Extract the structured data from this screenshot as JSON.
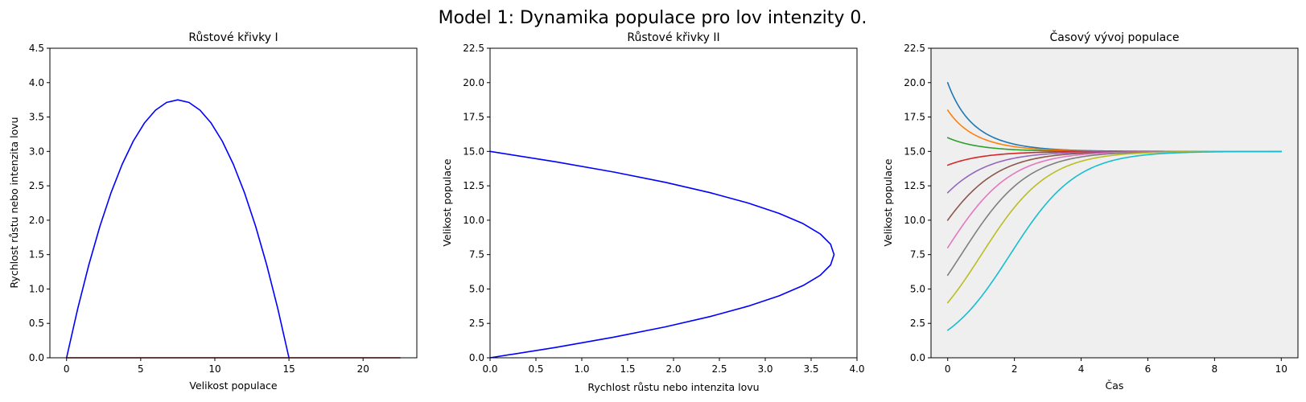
{
  "figure_title": "Model 1: Dynamika populace pro lov intenzity 0.",
  "chart_data": [
    {
      "type": "line",
      "title": "Růstové křivky I",
      "xlabel": "Velikost populace",
      "ylabel": "Rychlost růstu nebo intenzita lovu",
      "xlim": [
        -1.125,
        23.625
      ],
      "ylim": [
        0,
        4.5
      ],
      "xticks": [
        0,
        5,
        10,
        15,
        20
      ],
      "xtick_labels": [
        "0",
        "5",
        "10",
        "15",
        "20"
      ],
      "yticks": [
        0,
        0.5,
        1.0,
        1.5,
        2.0,
        2.5,
        3.0,
        3.5,
        4.0,
        4.5
      ],
      "ytick_labels": [
        "0.0",
        "0.5",
        "1.0",
        "1.5",
        "2.0",
        "2.5",
        "3.0",
        "3.5",
        "4.0",
        "4.5"
      ],
      "background": "#ffffff",
      "series": [
        {
          "color": "#0000ff",
          "x": [
            0,
            0.75,
            1.5,
            2.25,
            3,
            3.75,
            4.5,
            5.25,
            6,
            6.75,
            7.5,
            8.25,
            9,
            9.75,
            10.5,
            11.25,
            12,
            12.75,
            13.5,
            14.25,
            15
          ],
          "y": [
            0,
            0.7125,
            1.35,
            1.9125,
            2.4,
            2.8125,
            3.15,
            3.4125,
            3.6,
            3.7125,
            3.75,
            3.7125,
            3.6,
            3.4125,
            3.15,
            2.8125,
            2.4,
            1.9125,
            1.35,
            0.7125,
            0
          ]
        },
        {
          "color": "#8b0000",
          "x": [
            0,
            22.5
          ],
          "y": [
            0,
            0
          ]
        }
      ]
    },
    {
      "type": "line",
      "title": "Růstové křivky II",
      "xlabel": "Rychlost růstu nebo intenzita lovu",
      "ylabel": "Velikost populace",
      "xlim": [
        0,
        4.0
      ],
      "ylim": [
        0,
        22.5
      ],
      "xticks": [
        0,
        0.5,
        1.0,
        1.5,
        2.0,
        2.5,
        3.0,
        3.5,
        4.0
      ],
      "xtick_labels": [
        "0.0",
        "0.5",
        "1.0",
        "1.5",
        "2.0",
        "2.5",
        "3.0",
        "3.5",
        "4.0"
      ],
      "yticks": [
        0,
        2.5,
        5.0,
        7.5,
        10.0,
        12.5,
        15.0,
        17.5,
        20.0,
        22.5
      ],
      "ytick_labels": [
        "0.0",
        "2.5",
        "5.0",
        "7.5",
        "10.0",
        "12.5",
        "15.0",
        "17.5",
        "20.0",
        "22.5"
      ],
      "background": "#ffffff",
      "series": [
        {
          "color": "#0000ff",
          "x": [
            0,
            0.7125,
            1.35,
            1.9125,
            2.4,
            2.8125,
            3.15,
            3.4125,
            3.6,
            3.7125,
            3.75,
            3.7125,
            3.6,
            3.4125,
            3.15,
            2.8125,
            2.4,
            1.9125,
            1.35,
            0.7125,
            0
          ],
          "y": [
            0,
            0.75,
            1.5,
            2.25,
            3,
            3.75,
            4.5,
            5.25,
            6,
            6.75,
            7.5,
            8.25,
            9,
            9.75,
            10.5,
            11.25,
            12,
            12.75,
            13.5,
            14.25,
            15
          ]
        }
      ]
    },
    {
      "type": "line",
      "title": "Časový vývoj populace",
      "xlabel": "Čas",
      "ylabel": "Velikost populace",
      "xlim": [
        -0.5,
        10.5
      ],
      "ylim": [
        0,
        22.5
      ],
      "xticks": [
        0,
        2,
        4,
        6,
        8,
        10
      ],
      "xtick_labels": [
        "0",
        "2",
        "4",
        "6",
        "8",
        "10"
      ],
      "yticks": [
        0,
        2.5,
        5.0,
        7.5,
        10.0,
        12.5,
        15.0,
        17.5,
        20.0,
        22.5
      ],
      "ytick_labels": [
        "0.0",
        "2.5",
        "5.0",
        "7.5",
        "10.0",
        "12.5",
        "15.0",
        "17.5",
        "20.0",
        "22.5"
      ],
      "background": "#efefef",
      "logistic": {
        "K": 15,
        "r": 1.0,
        "t_max": 10
      },
      "series": [
        {
          "color": "#1f77b4",
          "initial_value": 20
        },
        {
          "color": "#ff7f0e",
          "initial_value": 18
        },
        {
          "color": "#2ca02c",
          "initial_value": 16
        },
        {
          "color": "#d62728",
          "initial_value": 14
        },
        {
          "color": "#9467bd",
          "initial_value": 12
        },
        {
          "color": "#8c564b",
          "initial_value": 10
        },
        {
          "color": "#e377c2",
          "initial_value": 8
        },
        {
          "color": "#7f7f7f",
          "initial_value": 6
        },
        {
          "color": "#bcbd22",
          "initial_value": 4
        },
        {
          "color": "#17becf",
          "initial_value": 2
        }
      ]
    }
  ]
}
